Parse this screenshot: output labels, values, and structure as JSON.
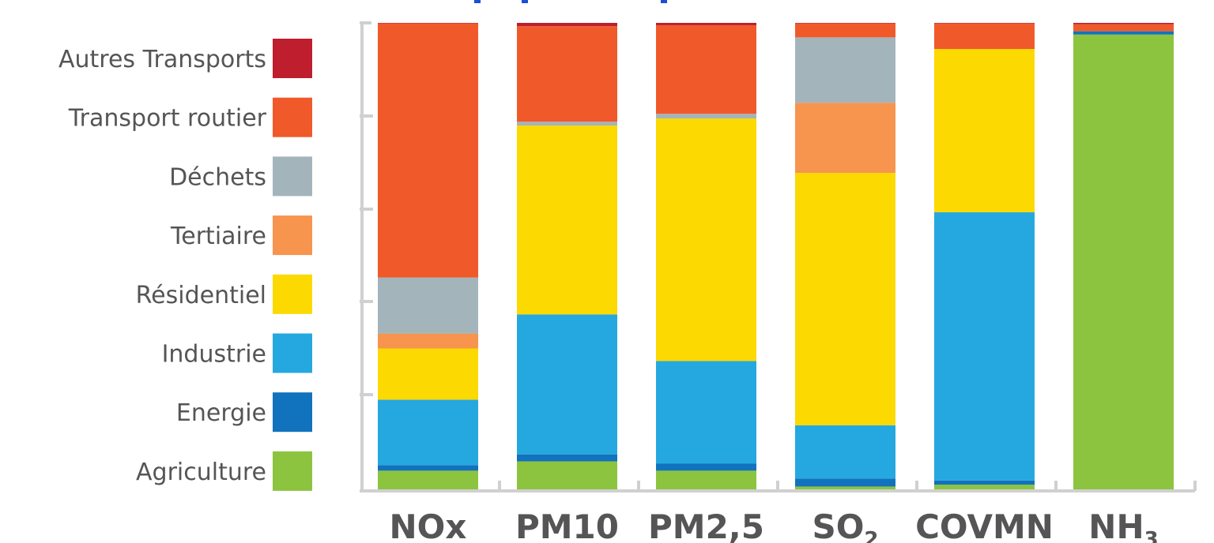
{
  "chart_data": {
    "type": "bar",
    "stacked": true,
    "normalized": true,
    "title": "",
    "xlabel": "",
    "ylabel": "",
    "ylim": [
      0,
      100
    ],
    "grid": false,
    "legend_position": "left",
    "categories": [
      {
        "label": "NOx",
        "main": "NOx",
        "sub": ""
      },
      {
        "label": "PM10",
        "main": "PM10",
        "sub": ""
      },
      {
        "label": "PM2,5",
        "main": "PM2,5",
        "sub": ""
      },
      {
        "label": "SO2",
        "main": "SO",
        "sub": "2"
      },
      {
        "label": "COVMN",
        "main": "COVMN",
        "sub": ""
      },
      {
        "label": "NH3",
        "main": "NH",
        "sub": "3"
      }
    ],
    "series": [
      {
        "name": "Agriculture",
        "color": "#8cc43f",
        "values": [
          4,
          6,
          4,
          0.6,
          1,
          97.5
        ]
      },
      {
        "name": "Energie",
        "color": "#1172bd",
        "values": [
          1.2,
          1.5,
          1.5,
          1.7,
          0.9,
          0.7
        ]
      },
      {
        "name": "Industrie",
        "color": "#25a8e0",
        "values": [
          14,
          30,
          22,
          11.4,
          57.5,
          0
        ]
      },
      {
        "name": "Résidentiel",
        "color": "#fcd900",
        "values": [
          11,
          40.5,
          52,
          54,
          35,
          0
        ]
      },
      {
        "name": "Tertiaire",
        "color": "#f7944e",
        "values": [
          3.2,
          0,
          0,
          15,
          0,
          0
        ]
      },
      {
        "name": "Déchets",
        "color": "#a4b4bb",
        "values": [
          12,
          0.8,
          1,
          14,
          0,
          0
        ]
      },
      {
        "name": "Transport routier",
        "color": "#f05a2b",
        "values": [
          54.5,
          20.5,
          19,
          3,
          5.5,
          1.5
        ]
      },
      {
        "name": "Autres Transports",
        "color": "#be1e2d",
        "values": [
          0.1,
          0.7,
          0.5,
          0.1,
          0.1,
          0.3
        ]
      }
    ],
    "axis_color": "#d0d0d0"
  }
}
